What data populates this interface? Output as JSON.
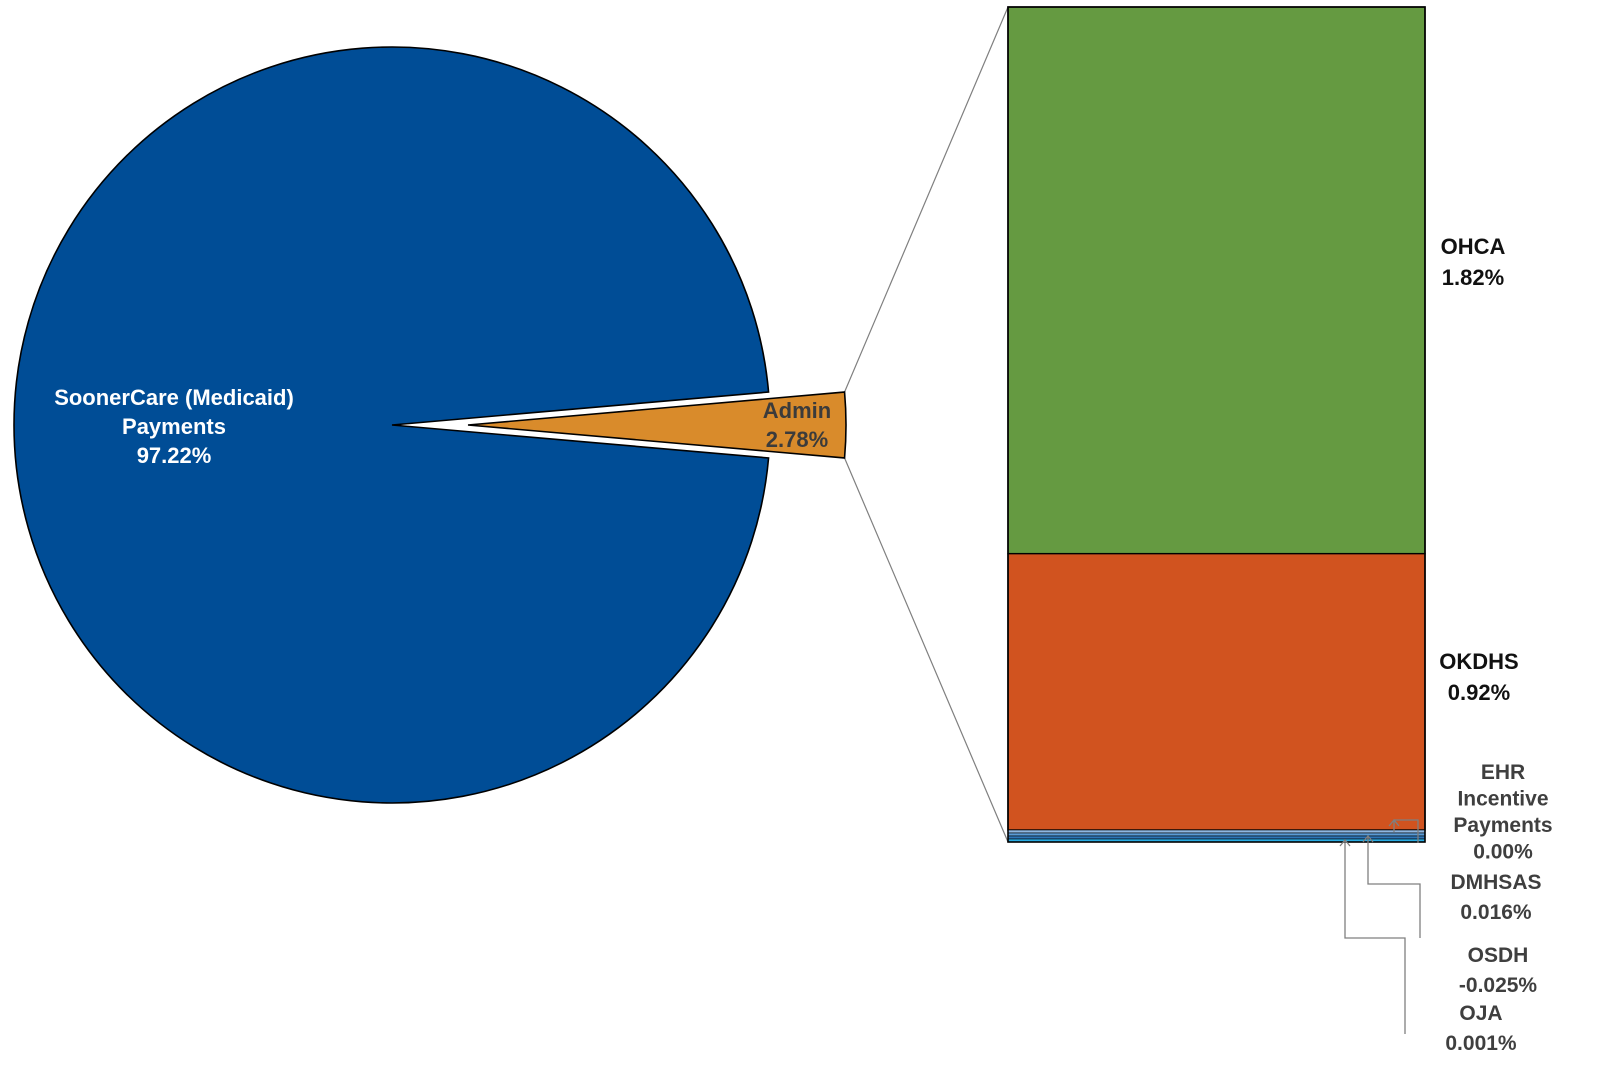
{
  "chart_data": {
    "type": "pie",
    "subtype": "bar-of-pie",
    "title": "",
    "pie": {
      "slices": [
        {
          "label_lines": [
            "SoonerCare (Medicaid)",
            "Payments"
          ],
          "value": 97.22,
          "value_label": "97.22%",
          "color": "#004d96"
        },
        {
          "label_lines": [
            "Admin"
          ],
          "value": 2.78,
          "value_label": "2.78%",
          "color": "#d98b2b",
          "exploded": true
        }
      ]
    },
    "bar": {
      "segments": [
        {
          "label_lines": [
            "OHCA"
          ],
          "value": 1.82,
          "value_label": "1.82%",
          "color": "#659a41"
        },
        {
          "label_lines": [
            "OKDHS"
          ],
          "value": 0.92,
          "value_label": "0.92%",
          "color": "#d1531f"
        },
        {
          "label_lines": [
            "EHR",
            "Incentive",
            "Payments"
          ],
          "value": 0.0,
          "value_label": "0.00%",
          "color": "#8fb6e0"
        },
        {
          "label_lines": [
            "DMHSAS"
          ],
          "value": 0.016,
          "value_label": "0.016%",
          "color": "#5b9bd5"
        },
        {
          "label_lines": [
            "OSDH"
          ],
          "value": -0.025,
          "value_label": "-0.025%",
          "color": "#2e75b6"
        },
        {
          "label_lines": [
            "OJA"
          ],
          "value": 0.001,
          "value_label": "0.001%",
          "color": "#29abe2"
        }
      ]
    },
    "legend": "none",
    "grid": false
  }
}
